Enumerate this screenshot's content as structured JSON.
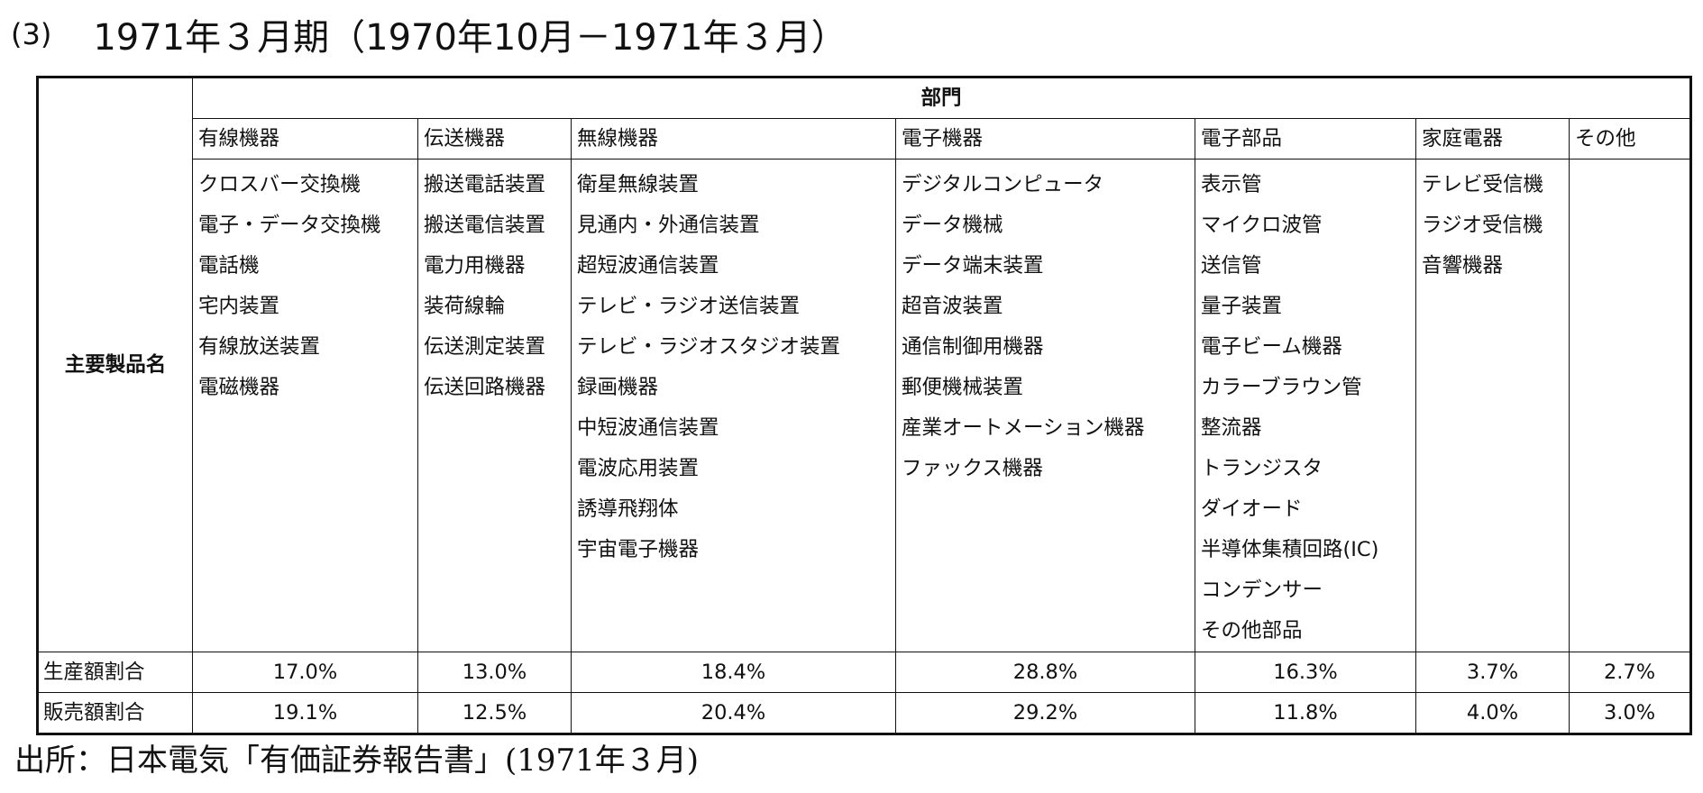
{
  "heading": {
    "number": "(3)",
    "text": "1971年３月期（1970年10月－1971年３月）"
  },
  "table": {
    "row_header": "主要製品名",
    "group_header": "部門",
    "departments": [
      {
        "name": "有線機器",
        "products": [
          "クロスバー交換機",
          "電子・データ交換機",
          "電話機",
          "宅内装置",
          "有線放送装置",
          "電磁機器"
        ]
      },
      {
        "name": "伝送機器",
        "products": [
          "搬送電話装置",
          "搬送電信装置",
          "電力用機器",
          "装荷線輪",
          "伝送測定装置",
          "伝送回路機器"
        ]
      },
      {
        "name": "無線機器",
        "products": [
          "衛星無線装置",
          "見通内・外通信装置",
          "超短波通信装置",
          "テレビ・ラジオ送信装置",
          "テレビ・ラジオスタジオ装置",
          "録画機器",
          "中短波通信装置",
          "電波応用装置",
          "誘導飛翔体",
          "宇宙電子機器"
        ]
      },
      {
        "name": "電子機器",
        "products": [
          "デジタルコンピュータ",
          "データ機械",
          "データ端末装置",
          "超音波装置",
          "通信制御用機器",
          "郵便機械装置",
          "産業オートメーション機器",
          "ファックス機器"
        ]
      },
      {
        "name": "電子部品",
        "products": [
          "表示管",
          "マイクロ波管",
          "送信管",
          "量子装置",
          "電子ビーム機器",
          "カラーブラウン管",
          "整流器",
          "トランジスタ",
          "ダイオード",
          "半導体集積回路(IC)",
          "コンデンサー",
          "その他部品"
        ]
      },
      {
        "name": "家庭電器",
        "products": [
          "テレビ受信機",
          "ラジオ受信機",
          "音響機器"
        ]
      },
      {
        "name": "その他",
        "products": []
      }
    ],
    "metrics": [
      {
        "label": "生産額割合",
        "values": [
          "17.0%",
          "13.0%",
          "18.4%",
          "28.8%",
          "16.3%",
          "3.7%",
          "2.7%"
        ]
      },
      {
        "label": "販売額割合",
        "values": [
          "19.1%",
          "12.5%",
          "20.4%",
          "29.2%",
          "11.8%",
          "4.0%",
          "3.0%"
        ]
      }
    ]
  },
  "source": "出所：日本電気「有価証券報告書」(1971年３月)"
}
